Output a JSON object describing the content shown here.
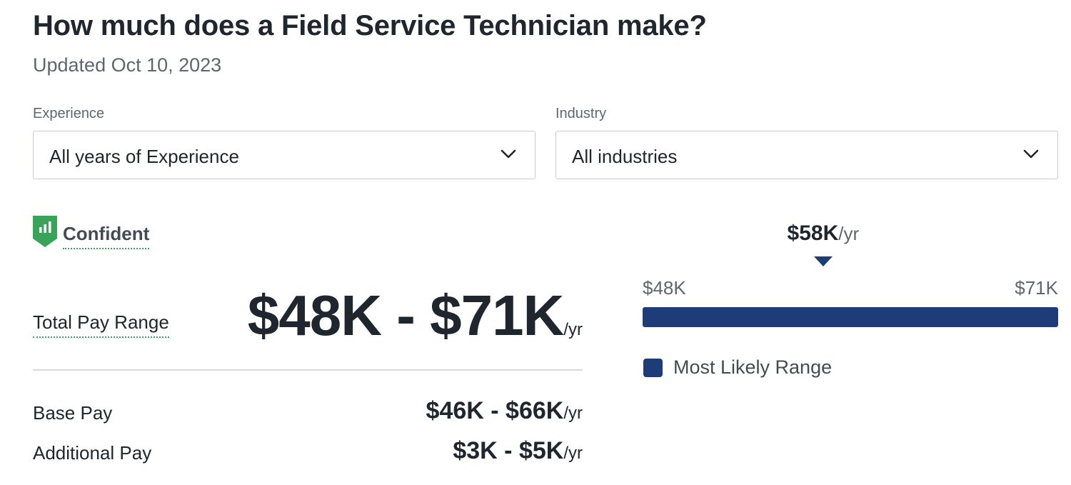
{
  "header": {
    "title": "How much does a Field Service Technician make?",
    "updated": "Updated Oct 10, 2023"
  },
  "filters": {
    "experience": {
      "label": "Experience",
      "value": "All years of Experience"
    },
    "industry": {
      "label": "Industry",
      "value": "All industries"
    }
  },
  "confidence": {
    "label": "Confident",
    "icon": "confidence-bars-icon",
    "color": "#3aa35a"
  },
  "pay": {
    "total_label": "Total Pay Range",
    "total_value": "$48K - $71K",
    "per_year": "/yr",
    "base_label": "Base Pay",
    "base_value": "$46K - $66K",
    "additional_label": "Additional Pay",
    "additional_value": "$3K - $5K"
  },
  "chart_data": {
    "type": "bar",
    "median_label": "$58K",
    "median_unit": "/yr",
    "median": 58,
    "min_label": "$48K",
    "max_label": "$71K",
    "min": 48,
    "max": 71,
    "legend": "Most Likely Range",
    "bar_color": "#1e3c78"
  }
}
